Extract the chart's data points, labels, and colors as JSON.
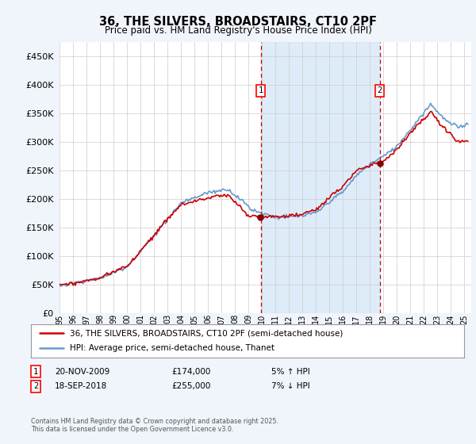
{
  "title": "36, THE SILVERS, BROADSTAIRS, CT10 2PF",
  "subtitle": "Price paid vs. HM Land Registry's House Price Index (HPI)",
  "ytick_values": [
    0,
    50000,
    100000,
    150000,
    200000,
    250000,
    300000,
    350000,
    400000,
    450000
  ],
  "ylim": [
    0,
    475000
  ],
  "xlim_start": 1995.0,
  "xlim_end": 2025.5,
  "hpi_color": "#6699cc",
  "price_color": "#cc0000",
  "marker1_x": 2009.9,
  "marker1_y": 174000,
  "marker2_x": 2018.72,
  "marker2_y": 255000,
  "shade_color": "#d0e4f7",
  "legend_line1": "36, THE SILVERS, BROADSTAIRS, CT10 2PF (semi-detached house)",
  "legend_line2": "HPI: Average price, semi-detached house, Thanet",
  "table_row1": [
    "1",
    "20-NOV-2009",
    "£174,000",
    "5% ↑ HPI"
  ],
  "table_row2": [
    "2",
    "18-SEP-2018",
    "£255,000",
    "7% ↓ HPI"
  ],
  "footnote": "Contains HM Land Registry data © Crown copyright and database right 2025.\nThis data is licensed under the Open Government Licence v3.0.",
  "background_color": "#f0f4fb",
  "plot_bg_color": "#ffffff",
  "grid_color": "#cccccc"
}
